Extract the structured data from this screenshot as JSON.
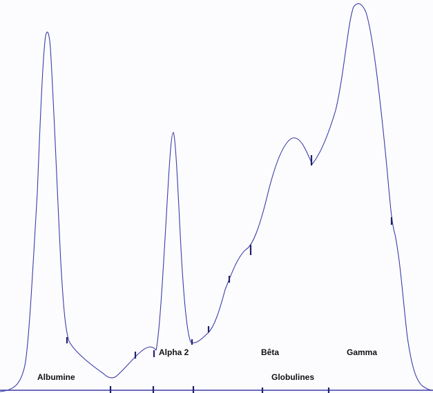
{
  "labels": {
    "albumine": "Albumine",
    "alpha2": "Alpha 2",
    "beta": "Bêta",
    "gamma": "Gamma",
    "globulines": "Globulines"
  }
}
